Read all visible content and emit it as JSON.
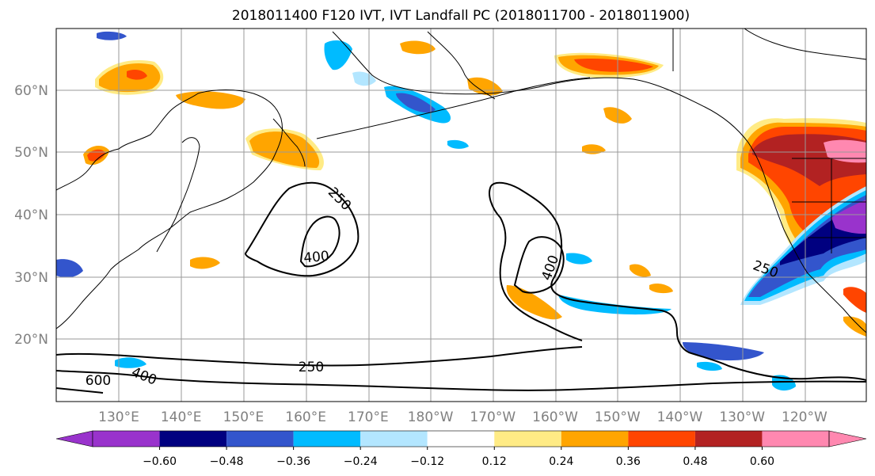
{
  "title": "2018011400 F120 IVT, IVT Landfall PC (2018011700 - 2018011900)",
  "lat_labels": [
    "60°N",
    "50°N",
    "40°N",
    "30°N",
    "20°N"
  ],
  "lon_labels": [
    "130°E",
    "140°E",
    "150°E",
    "160°E",
    "170°E",
    "180°W",
    "170°W",
    "160°W",
    "150°W",
    "140°W",
    "130°W",
    "120°W"
  ],
  "colorbar": {
    "ticks": [
      "−0.60",
      "−0.48",
      "−0.36",
      "−0.24",
      "−0.12",
      "0.12",
      "0.24",
      "0.36",
      "0.48",
      "0.60"
    ],
    "colors": [
      "#9933cc",
      "#000080",
      "#3355cc",
      "#00bbff",
      "#b3e6ff",
      "#ffffff",
      "#ffeb85",
      "#ffa500",
      "#ff4500",
      "#b22222",
      "#ff88b0",
      "#ff88b0"
    ],
    "extend": "both"
  },
  "contour_labels": [
    "250",
    "400",
    "400",
    "250",
    "250",
    "400",
    "600"
  ],
  "colors": {
    "purple": "#9933cc",
    "navy": "#000080",
    "royal": "#3355cc",
    "sky": "#00bbff",
    "pale_blue": "#b3e6ff",
    "yellow": "#ffeb85",
    "orange": "#ffa500",
    "red_orange": "#ff4500",
    "brick": "#b22222",
    "pink": "#ff88b0"
  }
}
